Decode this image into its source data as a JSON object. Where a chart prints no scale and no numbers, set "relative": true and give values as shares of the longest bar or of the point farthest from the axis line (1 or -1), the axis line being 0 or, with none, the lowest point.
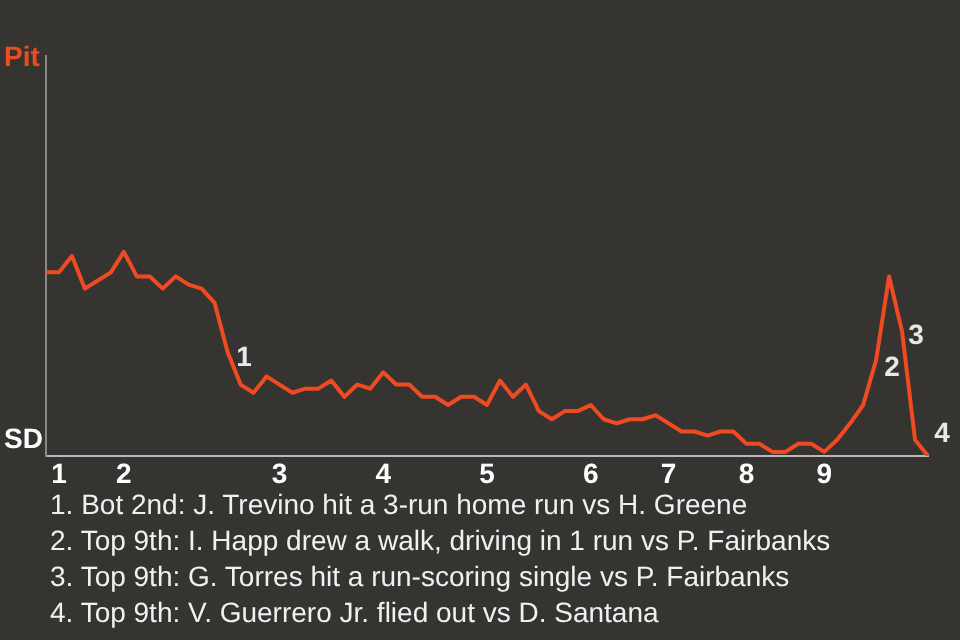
{
  "chart_data": {
    "type": "line",
    "relative": true,
    "categories": [
      null,
      "1",
      null,
      null,
      null,
      null,
      "2",
      null,
      null,
      null,
      null,
      null,
      null,
      null,
      null,
      null,
      null,
      null,
      "3",
      null,
      null,
      null,
      null,
      null,
      null,
      null,
      "4",
      null,
      null,
      null,
      null,
      null,
      null,
      null,
      "5",
      null,
      null,
      null,
      null,
      null,
      null,
      null,
      "6",
      null,
      null,
      null,
      null,
      null,
      "7",
      null,
      null,
      null,
      null,
      null,
      "8",
      null,
      null,
      null,
      null,
      null,
      "9",
      null,
      null,
      null,
      null,
      null,
      null,
      null,
      null
    ],
    "series": [
      {
        "color": "#f04a23",
        "values": [
          0.9,
          0.9,
          0.98,
          0.82,
          0.86,
          0.9,
          1,
          0.88,
          0.88,
          0.82,
          0.88,
          0.84,
          0.82,
          0.75,
          0.51,
          0.35,
          0.31,
          0.39,
          0.35,
          0.31,
          0.33,
          0.33,
          0.37,
          0.29,
          0.35,
          0.33,
          0.41,
          0.35,
          0.35,
          0.29,
          0.29,
          0.25,
          0.29,
          0.29,
          0.25,
          0.37,
          0.29,
          0.35,
          0.22,
          0.18,
          0.22,
          0.22,
          0.25,
          0.18,
          0.16,
          0.18,
          0.18,
          0.2,
          0.16,
          0.12,
          0.12,
          0.1,
          0.12,
          0.12,
          0.06,
          0.06,
          0.02,
          0.02,
          0.06,
          0.06,
          0.02,
          0.08,
          0.16,
          0.25,
          0.47,
          0.88,
          0.61,
          0.08,
          0
        ]
      }
    ],
    "legend": false,
    "marker": "none",
    "line_style": "solid",
    "annotations": [
      "1",
      "2",
      "3",
      "4",
      "Pit",
      "SD",
      "1. Bot 2nd: J. Trevino hit a 3-run home run vs H. Greene",
      "2. Top 9th: I. Happ drew a walk, driving in 1 run vs P. Fairbanks",
      "3. Top 9th: G. Torres hit a run-scoring single vs P. Fairbanks",
      "4. Top 9th: V. Guerrero Jr. flied out vs D. Santana"
    ]
  }
}
